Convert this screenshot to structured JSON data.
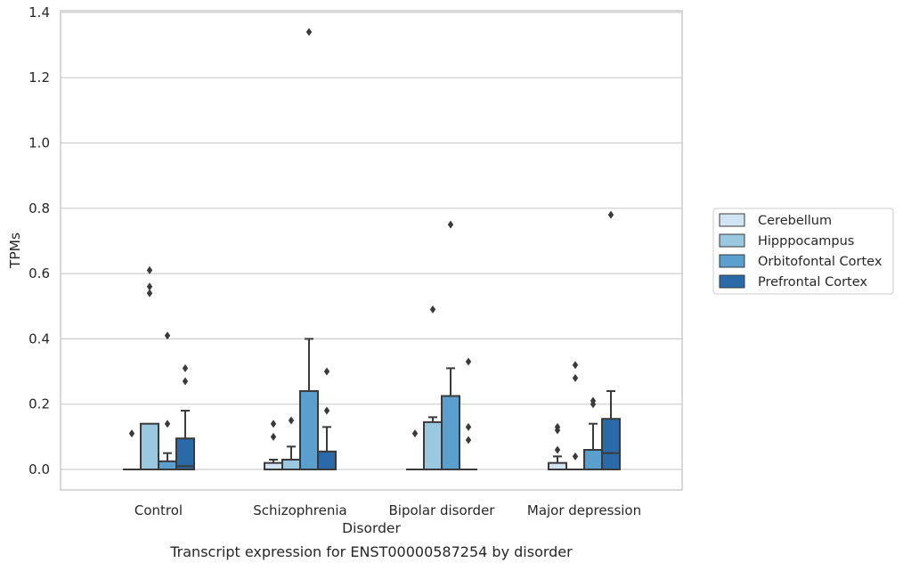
{
  "chart_data": {
    "type": "box",
    "title": "",
    "caption": "Transcript expression for ENST00000587254 by disorder",
    "xlabel": "Disorder",
    "ylabel": "TPMs",
    "ylim": [
      -0.065,
      1.41
    ],
    "yticks": [
      0.0,
      0.2,
      0.4,
      0.6,
      0.8,
      1.0,
      1.2,
      1.4
    ],
    "grid": "horizontal",
    "legend_position": "center-right",
    "categories": [
      "Control",
      "Schizophrenia",
      "Bipolar disorder",
      "Major depression"
    ],
    "series": [
      {
        "name": "Cerebellum",
        "color": "#d2e3f3",
        "boxes": [
          {
            "q1": 0.0,
            "median": 0.0,
            "q3": 0.0,
            "whisker_low": 0.0,
            "whisker_high": 0.0,
            "outliers": [
              0.11
            ]
          },
          {
            "q1": 0.0,
            "median": 0.0,
            "q3": 0.02,
            "whisker_low": 0.0,
            "whisker_high": 0.03,
            "outliers": [
              0.1,
              0.14
            ]
          },
          {
            "q1": 0.0,
            "median": 0.0,
            "q3": 0.0,
            "whisker_low": 0.0,
            "whisker_high": 0.0,
            "outliers": [
              0.11
            ]
          },
          {
            "q1": 0.0,
            "median": 0.0,
            "q3": 0.02,
            "whisker_low": 0.0,
            "whisker_high": 0.04,
            "outliers": [
              0.06,
              0.12,
              0.13
            ]
          }
        ]
      },
      {
        "name": "Hipppocampus",
        "color": "#9ac8e0",
        "boxes": [
          {
            "q1": 0.0,
            "median": 0.0,
            "q3": 0.14,
            "whisker_low": 0.0,
            "whisker_high": 0.14,
            "outliers": [
              0.54,
              0.56,
              0.61
            ]
          },
          {
            "q1": 0.0,
            "median": 0.0,
            "q3": 0.03,
            "whisker_low": 0.0,
            "whisker_high": 0.07,
            "outliers": [
              0.15
            ]
          },
          {
            "q1": 0.0,
            "median": 0.0,
            "q3": 0.145,
            "whisker_low": 0.0,
            "whisker_high": 0.16,
            "outliers": [
              0.49
            ]
          },
          {
            "q1": 0.0,
            "median": 0.0,
            "q3": 0.0,
            "whisker_low": 0.0,
            "whisker_high": 0.0,
            "outliers": [
              0.04,
              0.28,
              0.32
            ]
          }
        ]
      },
      {
        "name": "Orbitofontal Cortex",
        "color": "#5a9fcd",
        "boxes": [
          {
            "q1": 0.0,
            "median": 0.0,
            "q3": 0.025,
            "whisker_low": 0.0,
            "whisker_high": 0.05,
            "outliers": [
              0.14,
              0.41
            ]
          },
          {
            "q1": 0.0,
            "median": 0.0,
            "q3": 0.24,
            "whisker_low": 0.0,
            "whisker_high": 0.4,
            "outliers": [
              1.34
            ]
          },
          {
            "q1": 0.0,
            "median": 0.0,
            "q3": 0.225,
            "whisker_low": 0.0,
            "whisker_high": 0.31,
            "outliers": [
              0.75
            ]
          },
          {
            "q1": 0.0,
            "median": 0.0,
            "q3": 0.06,
            "whisker_low": 0.0,
            "whisker_high": 0.14,
            "outliers": [
              0.2,
              0.21
            ]
          }
        ]
      },
      {
        "name": "Prefrontal Cortex",
        "color": "#2a6aa8",
        "boxes": [
          {
            "q1": 0.0,
            "median": 0.01,
            "q3": 0.095,
            "whisker_low": 0.0,
            "whisker_high": 0.18,
            "outliers": [
              0.27,
              0.31
            ]
          },
          {
            "q1": 0.0,
            "median": 0.0,
            "q3": 0.055,
            "whisker_low": 0.0,
            "whisker_high": 0.13,
            "outliers": [
              0.18,
              0.3
            ]
          },
          {
            "q1": 0.0,
            "median": 0.0,
            "q3": 0.0,
            "whisker_low": 0.0,
            "whisker_high": 0.0,
            "outliers": [
              0.09,
              0.13,
              0.33
            ]
          },
          {
            "q1": 0.0,
            "median": 0.05,
            "q3": 0.155,
            "whisker_low": 0.0,
            "whisker_high": 0.24,
            "outliers": [
              0.78
            ]
          }
        ]
      }
    ]
  }
}
